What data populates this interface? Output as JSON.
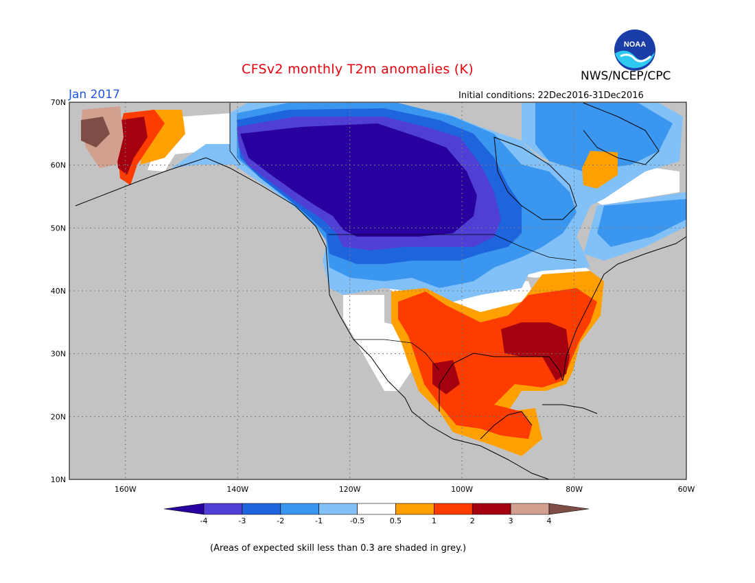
{
  "header": {
    "title": "CFSv2 monthly T2m anomalies (K)",
    "org": "NWS/NCEP/CPC",
    "month": "Jan 2017",
    "initial_conditions": "Initial conditions: 22Dec2016-31Dec2016",
    "logo_text": "NOAA"
  },
  "map": {
    "lat_labels": [
      "70N",
      "60N",
      "50N",
      "40N",
      "30N",
      "20N",
      "10N"
    ],
    "lon_labels": [
      "160W",
      "140W",
      "120W",
      "100W",
      "80W",
      "60W"
    ],
    "colors": {
      "no_skill_grey": "#c3c3c3",
      "ocean_grey": "#c3c3c3"
    }
  },
  "legend": {
    "colors": [
      "#2800a0",
      "#4f3fd4",
      "#1e64dc",
      "#3a96ee",
      "#82c0f8",
      "#ffffff",
      "#ffa000",
      "#ff3c00",
      "#a50010",
      "#d1a08e",
      "#7e4e46"
    ],
    "labels": [
      "-4",
      "-3",
      "-2",
      "-1",
      "-0.5",
      "0.5",
      "1",
      "2",
      "3",
      "4"
    ]
  },
  "footnote": "(Areas of expected skill less than 0.3 are shaded in grey.)"
}
